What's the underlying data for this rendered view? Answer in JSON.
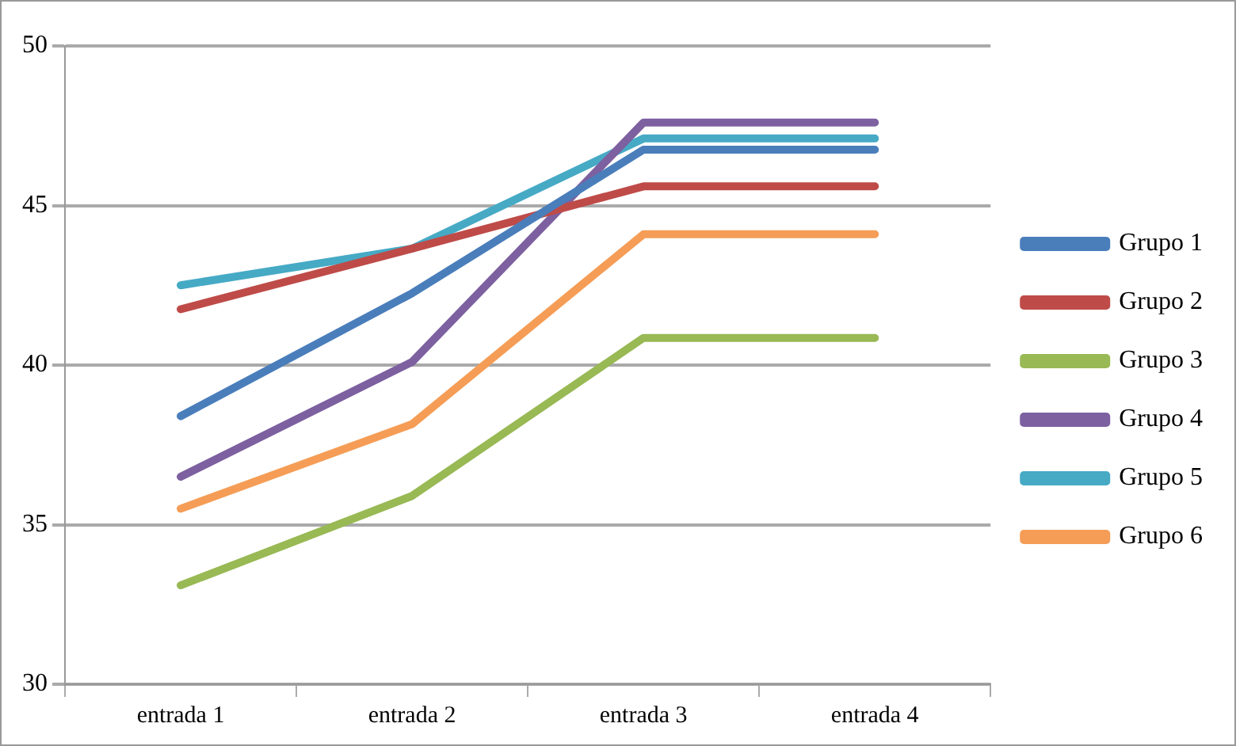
{
  "chart_data": {
    "type": "line",
    "categories": [
      "entrada 1",
      "entrada 2",
      "entrada 3",
      "entrada 4"
    ],
    "series": [
      {
        "name": "Grupo 1",
        "color": "#4a7ebb",
        "values": [
          38.4,
          42.25,
          46.75,
          46.75
        ]
      },
      {
        "name": "Grupo 2",
        "color": "#be4b48",
        "values": [
          41.75,
          43.65,
          45.6,
          45.6
        ]
      },
      {
        "name": "Grupo 3",
        "color": "#98b954",
        "values": [
          33.1,
          35.9,
          40.85,
          40.85
        ]
      },
      {
        "name": "Grupo 4",
        "color": "#7d60a0",
        "values": [
          36.5,
          40.1,
          47.6,
          47.6
        ]
      },
      {
        "name": "Grupo 5",
        "color": "#46aac5",
        "values": [
          42.5,
          43.65,
          47.1,
          47.1
        ]
      },
      {
        "name": "Grupo 6",
        "color": "#f59d56",
        "values": [
          35.5,
          38.15,
          44.1,
          44.1
        ]
      }
    ],
    "ylim": [
      30,
      50
    ],
    "yticks": [
      30,
      35,
      40,
      45,
      50
    ],
    "grid": "y",
    "legend": "right",
    "marker": "none",
    "line_style": "solid"
  }
}
